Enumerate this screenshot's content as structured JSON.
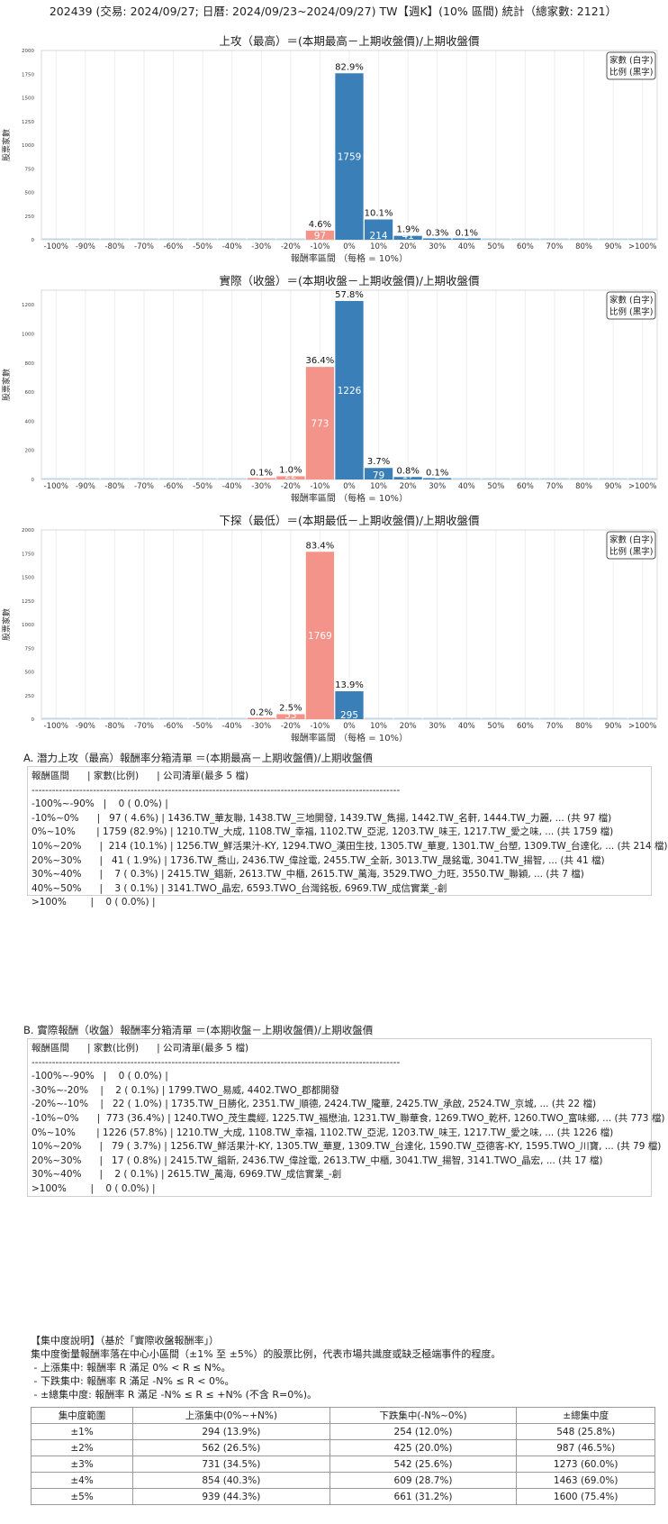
{
  "header": "202439 (交易: 2024/09/27; 日曆: 2024/09/23~2024/09/27) TW【週K】(10% 區間) 統計（總家數: 2121）",
  "colors": {
    "up": "#3a7fb8",
    "down": "#f4938a",
    "neutral": "#bcd6ea"
  },
  "chart_data": [
    {
      "type": "bar",
      "title": "上攻（最高）＝(本期最高－上期收盤價)/上期收盤價",
      "xlabel": "報酬率區間 （每格 = 10%）",
      "ylabel": "股票家數",
      "legend": [
        "家數 (白字)",
        "比例 (黑字)"
      ],
      "legend_position": "top-right",
      "ylim": [
        0,
        2000
      ],
      "yticks": [
        0,
        250,
        500,
        750,
        1000,
        1250,
        1500,
        1750,
        2000
      ],
      "categories": [
        "-100%",
        "-90%",
        "-80%",
        "-70%",
        "-60%",
        "-50%",
        "-40%",
        "-30%",
        "-20%",
        "-10%",
        "0%",
        "10%",
        "20%",
        "30%",
        "40%",
        "50%",
        "60%",
        "70%",
        "80%",
        "90%",
        ">100%"
      ],
      "values": [
        0,
        0,
        0,
        0,
        0,
        0,
        0,
        0,
        0,
        97,
        1759,
        214,
        41,
        7,
        3,
        0,
        0,
        0,
        0,
        0,
        0
      ],
      "pct_labels": [
        "",
        "",
        "",
        "",
        "",
        "",
        "",
        "",
        "",
        "4.6%",
        "82.9%",
        "10.1%",
        "1.9%",
        "0.3%",
        "0.1%",
        "",
        "",
        "",
        "",
        "",
        ""
      ]
    },
    {
      "type": "bar",
      "title": "實際（收盤）＝(本期收盤－上期收盤價)/上期收盤價",
      "xlabel": "報酬率區間 （每格 = 10%）",
      "ylabel": "股票家數",
      "legend": [
        "家數 (白字)",
        "比例 (黑字)"
      ],
      "legend_position": "top-right",
      "ylim": [
        0,
        1300
      ],
      "yticks": [
        0,
        200,
        400,
        600,
        800,
        1000,
        1200
      ],
      "categories": [
        "-100%",
        "-90%",
        "-80%",
        "-70%",
        "-60%",
        "-50%",
        "-40%",
        "-30%",
        "-20%",
        "-10%",
        "0%",
        "10%",
        "20%",
        "30%",
        "40%",
        "50%",
        "60%",
        "70%",
        "80%",
        "90%",
        ">100%"
      ],
      "values": [
        0,
        0,
        0,
        0,
        0,
        0,
        0,
        2,
        22,
        773,
        1226,
        79,
        17,
        2,
        0,
        0,
        0,
        0,
        0,
        0,
        0
      ],
      "pct_labels": [
        "",
        "",
        "",
        "",
        "",
        "",
        "",
        "0.1%",
        "1.0%",
        "36.4%",
        "57.8%",
        "3.7%",
        "0.8%",
        "0.1%",
        "",
        "",
        "",
        "",
        "",
        "",
        ""
      ]
    },
    {
      "type": "bar",
      "title": "下探（最低）＝(本期最低－上期收盤價)/上期收盤價",
      "xlabel": "報酬率區間 （每格 = 10%）",
      "ylabel": "股票家數",
      "legend": [
        "家數 (白字)",
        "比例 (黑字)"
      ],
      "legend_position": "top-right",
      "ylim": [
        0,
        2000
      ],
      "yticks": [
        0,
        250,
        500,
        750,
        1000,
        1250,
        1500,
        1750,
        2000
      ],
      "categories": [
        "-100%",
        "-90%",
        "-80%",
        "-70%",
        "-60%",
        "-50%",
        "-40%",
        "-30%",
        "-20%",
        "-10%",
        "0%",
        "10%",
        "20%",
        "30%",
        "40%",
        "50%",
        "60%",
        "70%",
        "80%",
        "90%",
        ">100%"
      ],
      "values": [
        0,
        0,
        0,
        0,
        0,
        0,
        0,
        4,
        53,
        1769,
        295,
        0,
        0,
        0,
        0,
        0,
        0,
        0,
        0,
        0,
        0
      ],
      "pct_labels": [
        "",
        "",
        "",
        "",
        "",
        "",
        "",
        "0.2%",
        "2.5%",
        "83.4%",
        "13.9%",
        "",
        "",
        "",
        "",
        "",
        "",
        "",
        "",
        "",
        ""
      ]
    }
  ],
  "sectionA": {
    "title": "A. 潛力上攻（最高）報酬率分箱清單 ＝(本期最高－上期收盤價)/上期收盤價",
    "rows": [
      "報酬區間      | 家數(比例)      | 公司清單(最多 5 檔)",
      "------------------------------------------------------------------------------------------------------------",
      "-100%~-90%   |    0 ( 0.0%) |",
      "-10%~0%      |   97 ( 4.6%) | 1436.TW_華友聯, 1438.TW_三地開發, 1439.TW_雋揚, 1442.TW_名軒, 1444.TW_力麗, ... (共 97 檔)",
      "0%~10%       | 1759 (82.9%) | 1210.TW_大成, 1108.TW_幸福, 1102.TW_亞泥, 1203.TW_味王, 1217.TW_愛之味, ... (共 1759 檔)",
      "10%~20%      |  214 (10.1%) | 1256.TW_鮮活果汁-KY, 1294.TWO_漢田生技, 1305.TW_華夏, 1301.TW_台塑, 1309.TW_台達化, ... (共 214 檔)",
      "20%~30%      |   41 ( 1.9%) | 1736.TW_喬山, 2436.TW_偉詮電, 2455.TW_全新, 3013.TW_晟銘電, 3041.TW_揚智, ... (共 41 檔)",
      "30%~40%      |    7 ( 0.3%) | 2415.TW_錩新, 2613.TW_中櫃, 2615.TW_萬海, 3529.TWO_力旺, 3550.TW_聯穎, ... (共 7 檔)",
      "40%~50%      |    3 ( 0.1%) | 3141.TWO_晶宏, 6593.TWO_台灣銘板, 6969.TW_成信實業_-創",
      ">100%        |    0 ( 0.0%) |"
    ]
  },
  "sectionB": {
    "title": "B. 實際報酬（收盤）報酬率分箱清單 ＝(本期收盤－上期收盤價)/上期收盤價",
    "rows": [
      "報酬區間      | 家數(比例)      | 公司清單(最多 5 檔)",
      "------------------------------------------------------------------------------------------------------------",
      "-100%~-90%   |    0 ( 0.0%) |",
      "-30%~-20%    |    2 ( 0.1%) | 1799.TWO_易威, 4402.TWO_郡都開發",
      "-20%~-10%    |   22 ( 1.0%) | 1735.TW_日勝化, 2351.TW_順德, 2424.TW_隴華, 2425.TW_承啟, 2524.TW_京城, ... (共 22 檔)",
      "-10%~0%      |  773 (36.4%) | 1240.TWO_茂生農經, 1225.TW_福懋油, 1231.TW_聯華食, 1269.TWO_乾杯, 1260.TWO_富味鄉, ... (共 773 檔)",
      "0%~10%       | 1226 (57.8%) | 1210.TW_大成, 1108.TW_幸福, 1102.TW_亞泥, 1203.TW_味王, 1217.TW_愛之味, ... (共 1226 檔)",
      "10%~20%      |   79 ( 3.7%) | 1256.TW_鮮活果汁-KY, 1305.TW_華夏, 1309.TW_台達化, 1590.TW_亞德客-KY, 1595.TWO_川寶, ... (共 79 檔)",
      "20%~30%      |   17 ( 0.8%) | 2415.TW_錩新, 2436.TW_偉詮電, 2613.TW_中櫃, 3041.TW_揚智, 3141.TWO_晶宏, ... (共 17 檔)",
      "30%~40%      |    2 ( 0.1%) | 2615.TW_萬海, 6969.TW_成信實業_-創",
      ">100%        |    0 ( 0.0%) |"
    ]
  },
  "notes": [
    "【集中度說明】（基於「實際收盤報酬率」）",
    "集中度衡量報酬率落在中心小區間（±1% 至 ±5%）的股票比例，代表市場共識度或缺乏極端事件的程度。",
    " - 上漲集中: 報酬率 R 滿足 0% < R ≤ N%。",
    " - 下跌集中: 報酬率 R 滿足 -N% ≤ R < 0%。",
    " - ±總集中度: 報酬率 R 滿足 -N% ≤ R ≤ +N% (不含 R=0%)。"
  ],
  "concentration": {
    "headers": [
      "集中度範圍",
      "上漲集中(0%~+N%)",
      "下跌集中(-N%~0%)",
      "±總集中度"
    ],
    "rows": [
      [
        "±1%",
        "294 (13.9%)",
        "254 (12.0%)",
        "548 (25.8%)"
      ],
      [
        "±2%",
        "562 (26.5%)",
        "425 (20.0%)",
        "987 (46.5%)"
      ],
      [
        "±3%",
        "731 (34.5%)",
        "542 (25.6%)",
        "1273 (60.0%)"
      ],
      [
        "±4%",
        "854 (40.3%)",
        "609 (28.7%)",
        "1463 (69.0%)"
      ],
      [
        "±5%",
        "939 (44.3%)",
        "661 (31.2%)",
        "1600 (75.4%)"
      ]
    ]
  }
}
